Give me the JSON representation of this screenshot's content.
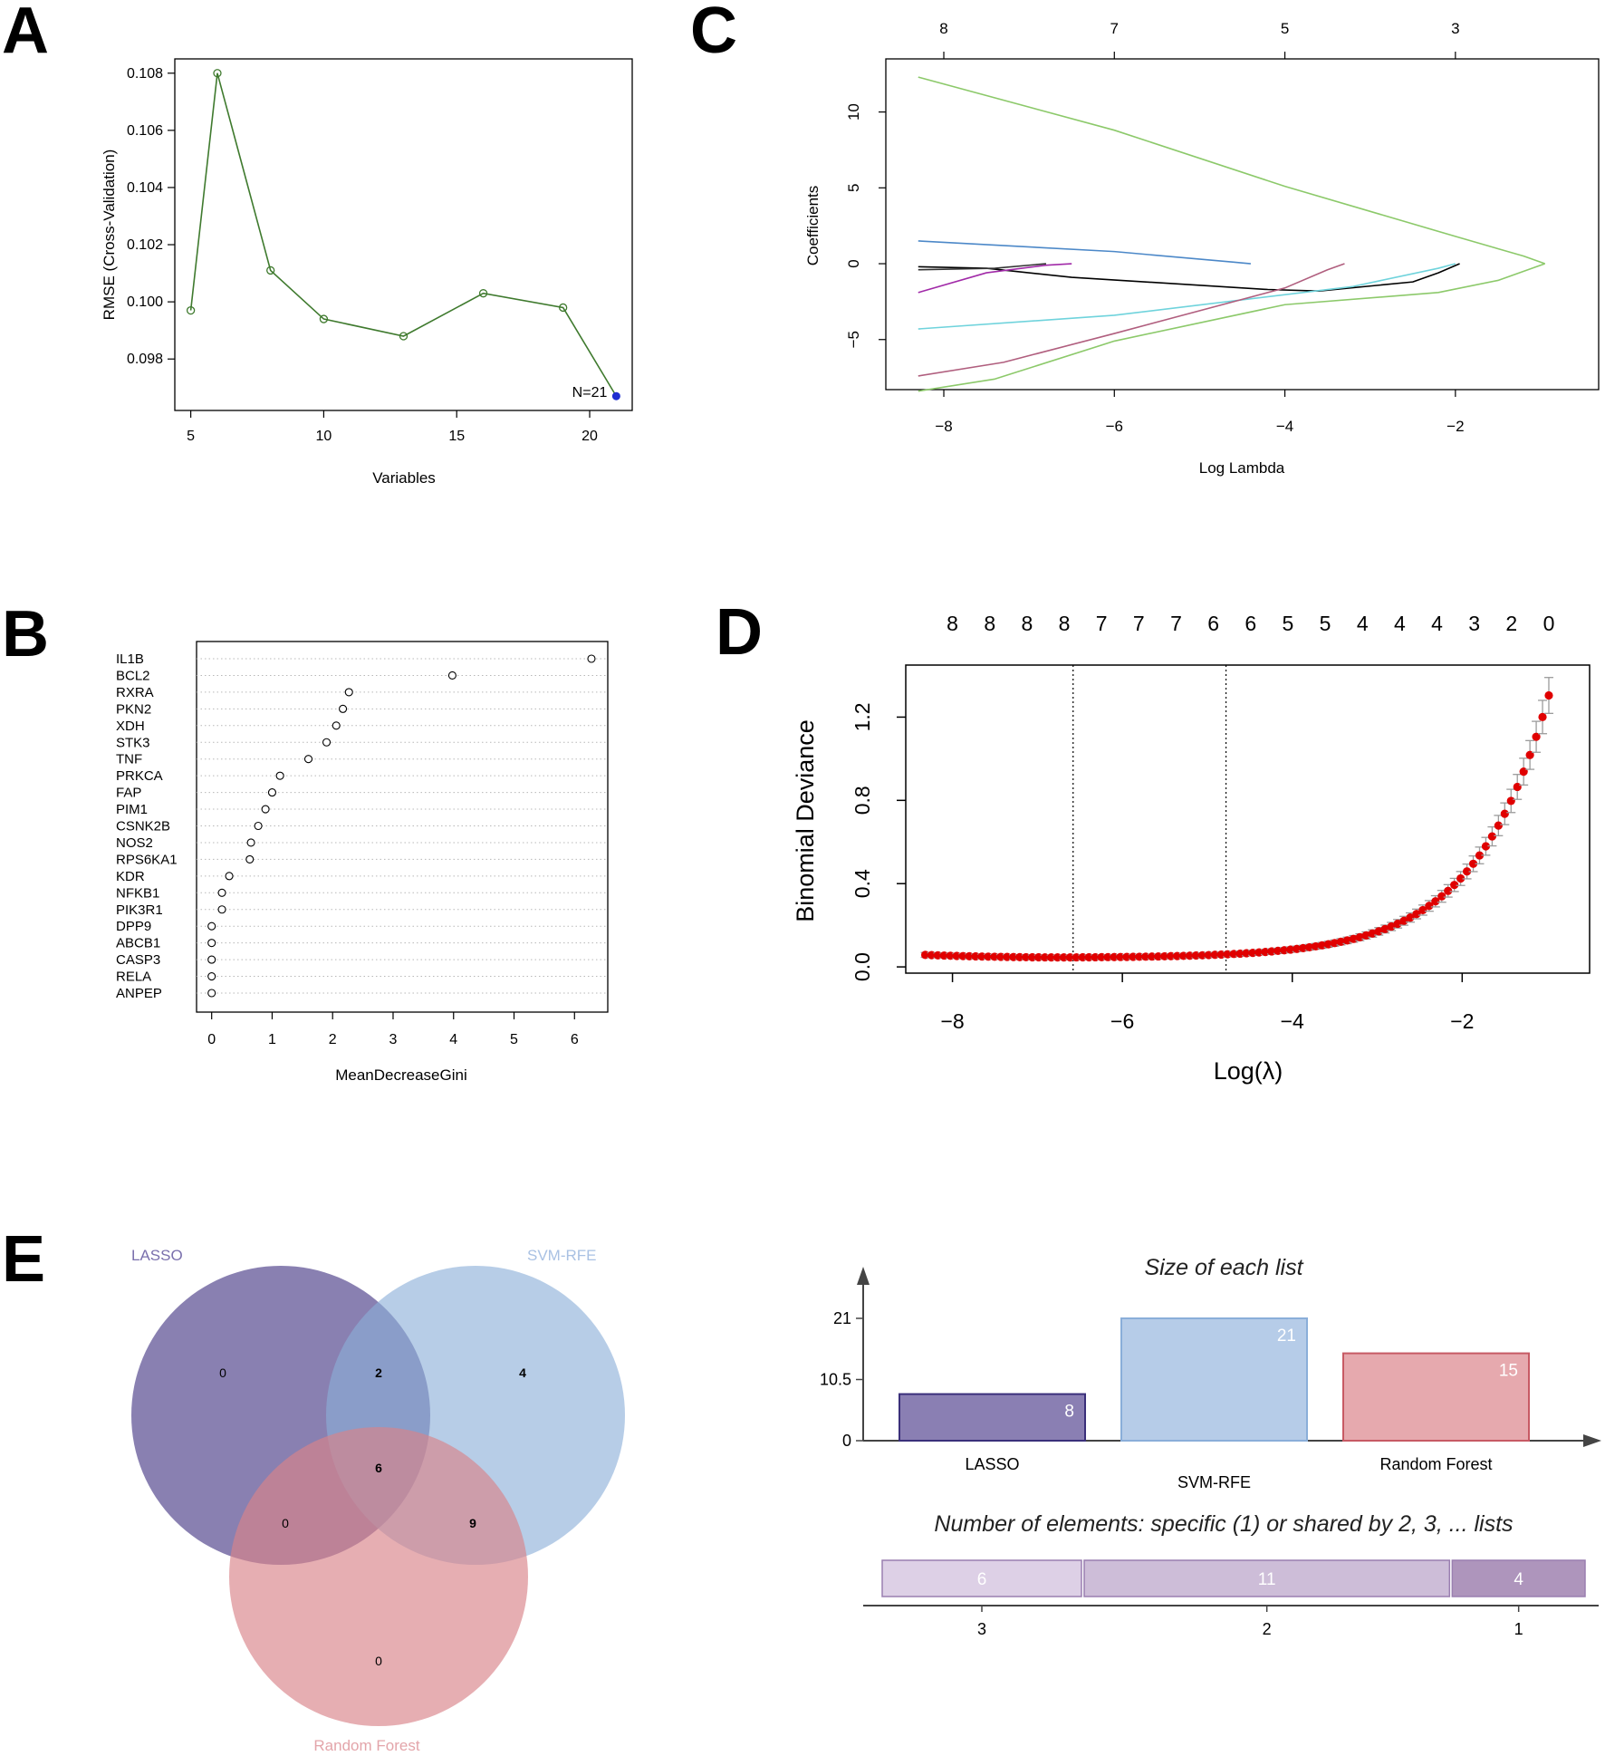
{
  "panel_labels": {
    "a": "A",
    "b": "B",
    "c": "C",
    "d": "D",
    "e": "E"
  },
  "chart_data": [
    {
      "panel": "A",
      "type": "line",
      "xlabel": "Variables",
      "ylabel": "RMSE (Cross-Validation)",
      "x": [
        5,
        6,
        8,
        10,
        13,
        16,
        19,
        21
      ],
      "y": [
        0.0997,
        0.108,
        0.1011,
        0.0994,
        0.0988,
        0.1003,
        0.0998,
        0.0967
      ],
      "xticks": [
        "5",
        "10",
        "15",
        "20"
      ],
      "yticks": [
        "0.098",
        "0.100",
        "0.102",
        "0.104",
        "0.106",
        "0.108"
      ],
      "xlim": [
        4.4,
        21.6
      ],
      "ylim": [
        0.0962,
        0.1085
      ],
      "line_color": "#3f7a2e",
      "highlight": {
        "x": 21,
        "y": 0.0967,
        "label": "N=21",
        "color": "#1f2fd0",
        "label_color": "#b03060"
      }
    },
    {
      "panel": "B",
      "type": "scatter",
      "xlabel": "MeanDecreaseGini",
      "categories": [
        "IL1B",
        "BCL2",
        "RXRA",
        "PKN2",
        "XDH",
        "STK3",
        "TNF",
        "PRKCA",
        "FAP",
        "PIM1",
        "CSNK2B",
        "NOS2",
        "RPS6KA1",
        "KDR",
        "NFKB1",
        "PIK3R1",
        "DPP9",
        "ABCB1",
        "CASP3",
        "RELA",
        "ANPEP"
      ],
      "values": [
        6.28,
        3.98,
        2.27,
        2.17,
        2.06,
        1.9,
        1.6,
        1.13,
        1.0,
        0.89,
        0.77,
        0.65,
        0.63,
        0.29,
        0.17,
        0.17,
        0.0,
        0.0,
        0.0,
        0.0,
        0.0
      ],
      "xticks": [
        "0",
        "1",
        "2",
        "3",
        "4",
        "5",
        "6"
      ],
      "xlim": [
        -0.25,
        6.55
      ]
    },
    {
      "panel": "C",
      "type": "line",
      "xlabel": "Log Lambda",
      "ylabel": "Coefficients",
      "xticks": [
        "−8",
        "−6",
        "−4",
        "−2"
      ],
      "yticks": [
        "−5",
        "0",
        "5",
        "10"
      ],
      "top_ticks": [
        "8",
        "7",
        "5",
        "3"
      ],
      "xlim": [
        -8.68,
        -0.32
      ],
      "ylim": [
        -8.3,
        13.5
      ],
      "series": [
        {
          "color": "#8cc96a",
          "x": [
            -8.3,
            -6,
            -4,
            -2,
            -1.2,
            -0.95
          ],
          "y": [
            12.3,
            8.8,
            5.1,
            1.8,
            0.5,
            0
          ]
        },
        {
          "color": "#4c88c8",
          "x": [
            -8.3,
            -6,
            -4.6,
            -4.4
          ],
          "y": [
            1.5,
            0.8,
            0.1,
            0
          ]
        },
        {
          "color": "#000000",
          "x": [
            -8.3,
            -7.5,
            -6.5,
            -4.2,
            -3.6,
            -2.5,
            -2.2,
            -1.95
          ],
          "y": [
            -0.2,
            -0.3,
            -0.9,
            -1.7,
            -1.8,
            -1.2,
            -0.6,
            0
          ]
        },
        {
          "color": "#333333",
          "x": [
            -8.3,
            -7.4,
            -6.8
          ],
          "y": [
            -0.4,
            -0.3,
            0
          ]
        },
        {
          "color": "#a12aa8",
          "x": [
            -8.3,
            -7.5,
            -6.8,
            -6.5
          ],
          "y": [
            -1.9,
            -0.6,
            -0.1,
            0
          ]
        },
        {
          "color": "#6fd3dc",
          "x": [
            -8.3,
            -6,
            -3.2,
            -2.2,
            -2.0
          ],
          "y": [
            -4.3,
            -3.4,
            -1.5,
            -0.3,
            0
          ]
        },
        {
          "color": "#b05e7e",
          "x": [
            -8.3,
            -7.3,
            -6,
            -4,
            -3.5,
            -3.3
          ],
          "y": [
            -7.4,
            -6.5,
            -4.6,
            -1.6,
            -0.4,
            0
          ]
        },
        {
          "color": "#8cc96a",
          "x": [
            -8.3,
            -7.4,
            -6,
            -4,
            -2.2,
            -1.5,
            -0.95
          ],
          "y": [
            -8.4,
            -7.6,
            -5.1,
            -2.7,
            -1.9,
            -1.1,
            0
          ]
        }
      ]
    },
    {
      "panel": "D",
      "type": "scatter",
      "xlabel": "Log(λ)",
      "ylabel": "Binomial Deviance",
      "xticks": [
        "−8",
        "−6",
        "−4",
        "−2"
      ],
      "yticks": [
        "0.0",
        "0.4",
        "0.8",
        "1.2"
      ],
      "top_ticks": [
        "8",
        "8",
        "8",
        "8",
        "7",
        "7",
        "7",
        "6",
        "6",
        "5",
        "5",
        "4",
        "4",
        "4",
        "3",
        "2",
        "0"
      ],
      "xlim": [
        -8.55,
        -0.5
      ],
      "ylim": [
        -0.03,
        1.45
      ],
      "x_range": [
        -8.32,
        -0.98
      ],
      "n_points": 100,
      "lambda_min": -6.58,
      "lambda_1se": -4.78,
      "point_color": "#e00000",
      "errorbar_color": "#9b9b9b"
    },
    {
      "panel": "E-venn",
      "type": "venn",
      "sets": [
        {
          "name": "LASSO",
          "color": "#5b4f93",
          "label_color": "#7a70ad"
        },
        {
          "name": "SVM-RFE",
          "color": "#8aaed9",
          "label_color": "#a9c1e3"
        },
        {
          "name": "Random Forest",
          "color": "#d98289",
          "label_color": "#e3a5aa"
        }
      ],
      "regions": {
        "lasso_only": 0,
        "svm_only": 4,
        "rf_only": 0,
        "lasso_svm": 2,
        "lasso_rf": 0,
        "svm_rf": 9,
        "all": 6
      }
    },
    {
      "panel": "E-bars",
      "type": "bar",
      "title": "Size of each list",
      "categories": [
        "LASSO",
        "SVM-RFE",
        "Random Forest"
      ],
      "values": [
        8,
        21,
        15
      ],
      "yticks": [
        "0",
        "10.5",
        "21"
      ],
      "ylim": [
        0,
        21
      ],
      "colors": [
        "#8a7fb3",
        "#b6cce8",
        "#e6a9ae"
      ],
      "edge_colors": [
        "#3a2f7a",
        "#8aaed9",
        "#c75a64"
      ]
    },
    {
      "panel": "E-shared",
      "type": "bar",
      "title": "Number of elements: specific (1) or shared by 2, 3, ... lists",
      "categories": [
        "3",
        "2",
        "1"
      ],
      "values": [
        6,
        11,
        4
      ],
      "colors": [
        "#ddd0e6",
        "#cdbdd8",
        "#ae95bc"
      ],
      "edge_color": "#9a7fb0"
    }
  ]
}
